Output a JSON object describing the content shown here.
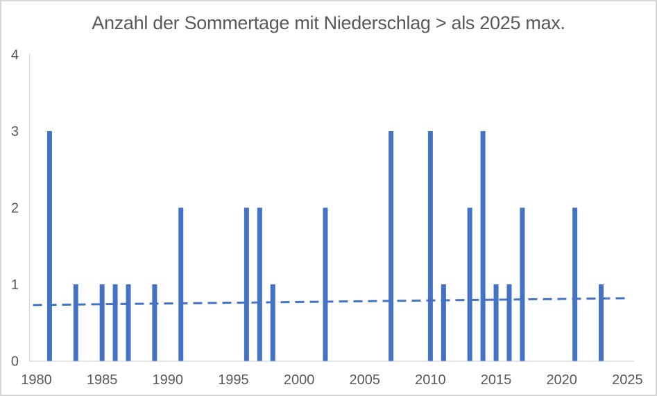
{
  "window": {
    "background": "#FFFFFF",
    "border_color": "#D6D6D6"
  },
  "chart_data": {
    "type": "bar",
    "title": "Anzahl der Sommertage mit Niederschlag > als 2025 max.",
    "xlabel": "",
    "ylabel": "",
    "xlim": [
      1980,
      2025
    ],
    "ylim": [
      0,
      4
    ],
    "x_ticks": [
      1980,
      1985,
      1990,
      1995,
      2000,
      2005,
      2010,
      2015,
      2020,
      2025
    ],
    "y_ticks": [
      0,
      1,
      2,
      3,
      4
    ],
    "grid": false,
    "legend": false,
    "bars": [
      {
        "year": 1981,
        "value": 3
      },
      {
        "year": 1983,
        "value": 1
      },
      {
        "year": 1985,
        "value": 1
      },
      {
        "year": 1986,
        "value": 1
      },
      {
        "year": 1987,
        "value": 1
      },
      {
        "year": 1989,
        "value": 1
      },
      {
        "year": 1991,
        "value": 2
      },
      {
        "year": 1996,
        "value": 2
      },
      {
        "year": 1997,
        "value": 2
      },
      {
        "year": 1998,
        "value": 1
      },
      {
        "year": 2002,
        "value": 2
      },
      {
        "year": 2007,
        "value": 3
      },
      {
        "year": 2010,
        "value": 3
      },
      {
        "year": 2011,
        "value": 1
      },
      {
        "year": 2013,
        "value": 2
      },
      {
        "year": 2014,
        "value": 3
      },
      {
        "year": 2015,
        "value": 1
      },
      {
        "year": 2016,
        "value": 1
      },
      {
        "year": 2017,
        "value": 2
      },
      {
        "year": 2021,
        "value": 2
      },
      {
        "year": 2023,
        "value": 1
      }
    ],
    "trendline": {
      "type": "linear",
      "style": "dashed",
      "start": {
        "year": 1980,
        "value": 0.73
      },
      "end": {
        "year": 2025,
        "value": 0.82
      }
    },
    "colors": {
      "bar": "#4472C4",
      "trend": "#4472C4",
      "axis_line": "#D9D9D9",
      "tick_label": "#595959",
      "title": "#595959"
    }
  }
}
